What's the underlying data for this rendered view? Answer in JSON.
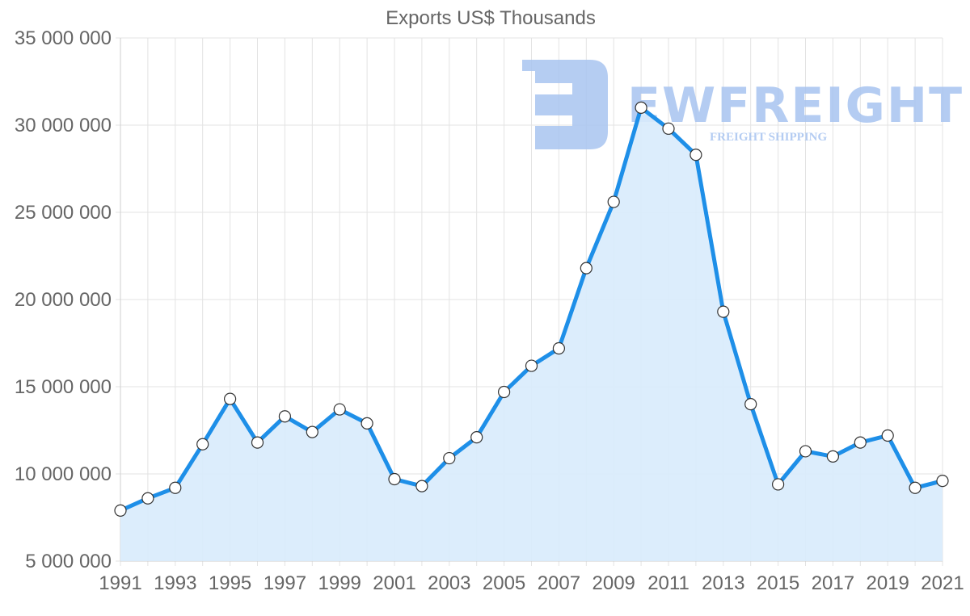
{
  "chart": {
    "title": "Exports US$ Thousands"
  },
  "watermark": {
    "brand": "EWFREIGHT",
    "tagline": "FREIGHT SHIPPING",
    "color": "#a8c4f0"
  },
  "colors": {
    "line": "#1e8fe8",
    "fill": "#d8ebfc",
    "point_fill": "#ffffff",
    "point_stroke": "#333333",
    "text": "#666666",
    "grid": "#e3e3e3"
  },
  "chart_data": {
    "type": "area",
    "title": "Exports US$ Thousands",
    "xlabel": "",
    "ylabel": "",
    "ylim": [
      5000000,
      35000000
    ],
    "yticks": [
      5000000,
      10000000,
      15000000,
      20000000,
      25000000,
      30000000,
      35000000
    ],
    "ytick_labels": [
      "5 000 000",
      "10 000 000",
      "15 000 000",
      "20 000 000",
      "25 000 000",
      "30 000 000",
      "35 000 000"
    ],
    "xtick_labels": [
      "1991",
      "1993",
      "1995",
      "1997",
      "1999",
      "2001",
      "2003",
      "2005",
      "2007",
      "2009",
      "2011",
      "2013",
      "2015",
      "2017",
      "2019",
      "2021"
    ],
    "grid": true,
    "legend": null,
    "x": [
      1991,
      1992,
      1993,
      1994,
      1995,
      1996,
      1997,
      1998,
      1999,
      2000,
      2001,
      2002,
      2003,
      2004,
      2005,
      2006,
      2007,
      2008,
      2009,
      2010,
      2011,
      2012,
      2013,
      2014,
      2015,
      2016,
      2017,
      2018,
      2019,
      2020,
      2021
    ],
    "series": [
      {
        "name": "Exports US$ Thousands",
        "values": [
          7900000,
          8600000,
          9200000,
          11700000,
          14300000,
          11800000,
          13300000,
          12400000,
          13700000,
          12900000,
          9700000,
          9300000,
          10900000,
          12100000,
          14700000,
          16200000,
          17200000,
          21800000,
          25600000,
          31000000,
          29800000,
          28300000,
          19300000,
          14000000,
          9400000,
          11300000,
          11000000,
          11800000,
          12200000,
          9200000,
          9600000
        ]
      }
    ]
  }
}
